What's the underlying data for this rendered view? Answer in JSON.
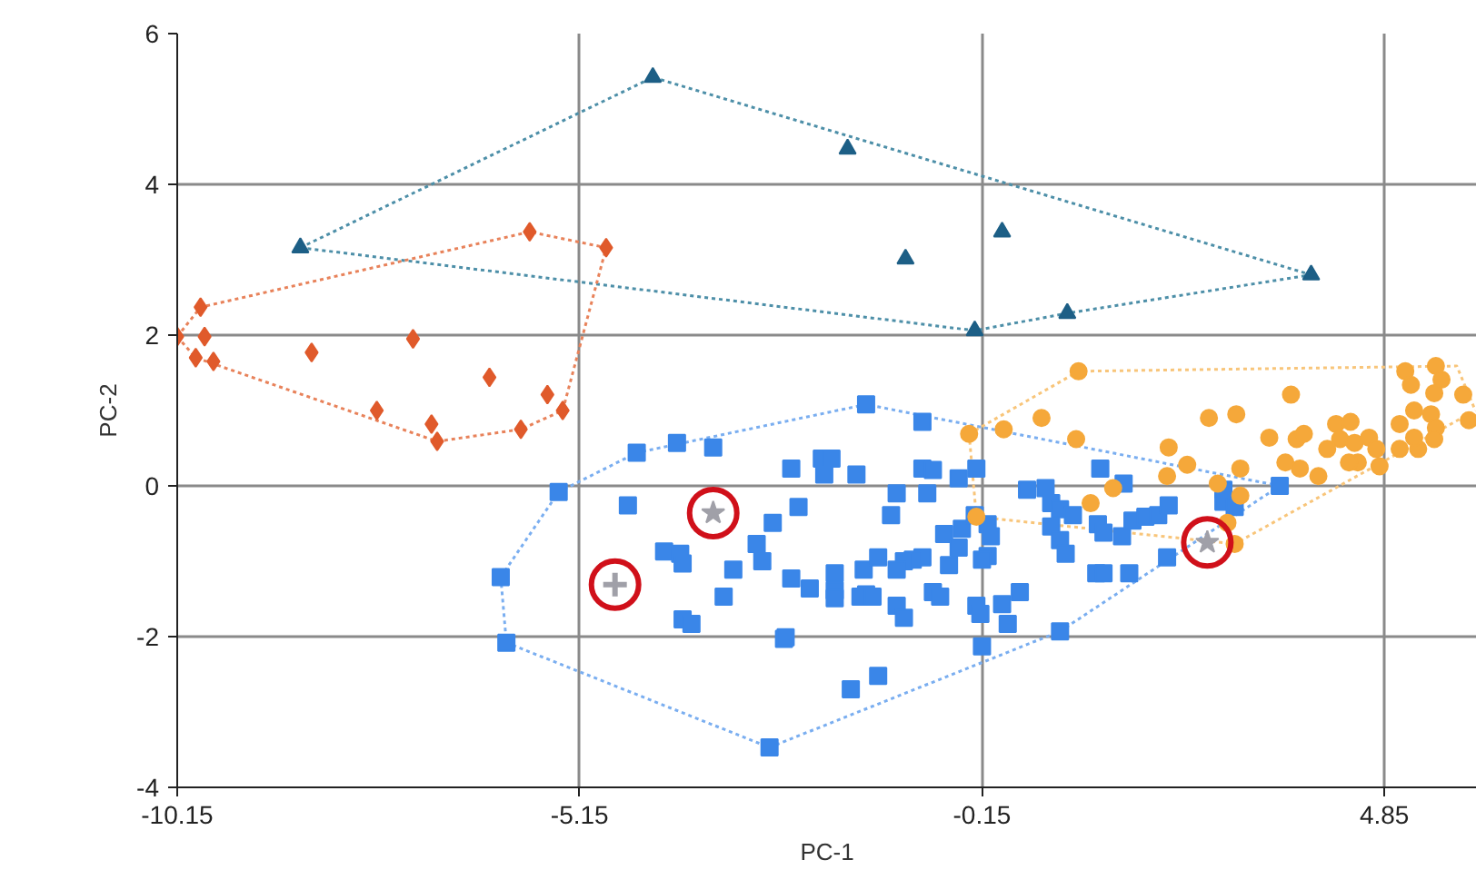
{
  "chart_data": {
    "type": "scatter",
    "xlabel": "PC-1",
    "ylabel": "PC-2",
    "xlim": [
      -10.15,
      6.0
    ],
    "ylim": [
      -4,
      6
    ],
    "xticks": [
      -10.15,
      -5.15,
      -0.15,
      4.85
    ],
    "yticks": [
      -4,
      -2,
      0,
      2,
      4,
      6
    ],
    "grid": true,
    "series": [
      {
        "type": "line",
        "line_style": "dotted",
        "color": "#4d8fa8",
        "x": [
          -8.62,
          -4.24,
          3.94
        ],
        "values": [
          3.16,
          5.42,
          2.8
        ]
      },
      {
        "type": "line",
        "line_style": "dotted",
        "color": "#4d8fa8",
        "x": [
          -8.62,
          -0.24,
          0.91,
          3.94
        ],
        "values": [
          3.16,
          2.06,
          2.29,
          2.8
        ]
      },
      {
        "type": "line",
        "line_style": "dotted",
        "color": "#e8825a",
        "x": [
          -10.15,
          -9.86,
          -5.77,
          -4.82
        ],
        "values": [
          1.98,
          2.37,
          3.37,
          3.16
        ]
      },
      {
        "type": "line",
        "line_style": "dotted",
        "color": "#e8825a",
        "x": [
          -10.15,
          -9.92,
          -6.92,
          -5.88,
          -5.36,
          -4.82
        ],
        "values": [
          1.98,
          1.7,
          0.59,
          0.75,
          1.0,
          3.16
        ]
      },
      {
        "type": "line",
        "line_style": "dotted",
        "color": "#7aaef0",
        "x": [
          -6.13,
          -5.41,
          -4.44,
          -1.59,
          3.55
        ],
        "values": [
          -1.21,
          -0.08,
          0.44,
          1.08,
          0.0
        ]
      },
      {
        "type": "line",
        "line_style": "dotted",
        "color": "#7aaef0",
        "x": [
          -6.13,
          -6.06,
          -2.79,
          0.82,
          3.55
        ],
        "values": [
          -1.21,
          -2.08,
          -3.47,
          -1.93,
          0.0
        ]
      },
      {
        "type": "line",
        "line_style": "dotted",
        "color": "#f8c57a",
        "x": [
          -0.31,
          1.05,
          5.75,
          5.98
        ],
        "values": [
          0.69,
          1.52,
          1.59,
          1.0
        ]
      },
      {
        "type": "line",
        "line_style": "dotted",
        "color": "#f8c57a",
        "x": [
          -0.31,
          -0.22,
          2.99,
          5.98
        ],
        "values": [
          0.69,
          -0.41,
          -0.77,
          1.0
        ]
      },
      {
        "marker": "triangle",
        "color": "#1d5f86",
        "x": [
          -4.24,
          -8.62,
          -1.82,
          -1.1,
          0.1,
          -0.24,
          0.91,
          3.94
        ],
        "values": [
          5.42,
          3.16,
          4.47,
          3.01,
          3.37,
          2.06,
          2.29,
          2.8
        ]
      },
      {
        "marker": "diamond",
        "color": "#e05a2b",
        "x": [
          -9.86,
          -10.15,
          -9.81,
          -9.92,
          -9.7,
          -8.48,
          -7.22,
          -7.67,
          -6.99,
          -6.92,
          -6.27,
          -5.88,
          -5.55,
          -5.36,
          -5.77,
          -4.82
        ],
        "values": [
          2.37,
          1.98,
          1.98,
          1.7,
          1.65,
          1.77,
          1.95,
          1.0,
          0.82,
          0.59,
          1.44,
          0.75,
          1.21,
          1.0,
          3.37,
          3.16
        ]
      },
      {
        "marker": "square",
        "color": "#3a86e8",
        "x": [
          -4.44,
          -3.94,
          -3.49,
          -5.41,
          -4.55,
          -6.13,
          -6.06,
          -2.79,
          -1.59,
          -2.52,
          -2.14,
          -2.02,
          -2.11,
          -1.71,
          -2.43,
          -2.75,
          -2.95,
          -2.88,
          -4.1,
          -3.9,
          -3.87,
          -3.24,
          -2.52,
          -2.29,
          -1.98,
          -1.98,
          -1.98,
          -1.62,
          -1.59,
          -3.36,
          -3.87,
          -3.76,
          -2.61,
          -1.78,
          -0.89,
          -0.89,
          -0.76,
          -0.44,
          -0.22,
          -1.21,
          -0.83,
          -1.28,
          -0.62,
          -0.4,
          -0.24,
          -0.08,
          -0.04,
          -0.08,
          -0.15,
          -0.44,
          -0.56,
          -0.89,
          -1.01,
          -1.12,
          -1.21,
          -1.44,
          -1.66,
          -1.51,
          -1.21,
          -1.12,
          -0.76,
          -0.67,
          -0.22,
          -0.17,
          0.1,
          0.17,
          0.32,
          -0.15,
          0.82,
          -1.44,
          -2.59,
          0.41,
          0.64,
          0.71,
          0.82,
          0.98,
          0.71,
          0.82,
          0.89,
          1.32,
          1.61,
          1.29,
          1.36,
          1.59,
          1.72,
          1.88,
          2.04,
          2.17,
          1.27,
          1.36,
          1.68,
          2.15,
          2.85,
          2.85,
          2.99,
          3.55
        ],
        "values": [
          0.44,
          0.57,
          0.51,
          -0.08,
          -0.26,
          -1.21,
          -2.08,
          -3.47,
          1.08,
          0.23,
          0.36,
          0.36,
          0.15,
          0.15,
          -0.28,
          -0.49,
          -0.77,
          -1.0,
          -0.87,
          -0.9,
          -1.03,
          -1.11,
          -1.23,
          -1.36,
          -1.16,
          -1.39,
          -1.49,
          -1.11,
          -1.44,
          -1.47,
          -1.77,
          -1.83,
          -2.03,
          -2.7,
          0.85,
          0.23,
          0.21,
          0.1,
          0.23,
          -0.1,
          -0.1,
          -0.39,
          -0.64,
          -0.57,
          -0.39,
          -0.51,
          -0.67,
          -0.93,
          -0.98,
          -0.82,
          -1.05,
          -0.95,
          -0.98,
          -1.0,
          -1.11,
          -0.95,
          -1.47,
          -1.47,
          -1.59,
          -1.75,
          -1.41,
          -1.47,
          -1.59,
          -1.7,
          -1.57,
          -1.83,
          -1.41,
          -2.13,
          -1.93,
          -2.52,
          -2.01,
          -0.05,
          -0.03,
          -0.23,
          -0.31,
          -0.39,
          -0.54,
          -0.72,
          -0.9,
          0.23,
          0.03,
          -0.51,
          -0.62,
          -0.67,
          -0.46,
          -0.41,
          -0.39,
          -0.26,
          -1.16,
          -1.16,
          -1.16,
          -0.95,
          -0.05,
          -0.21,
          -0.28,
          0.0
        ]
      },
      {
        "marker": "circle",
        "color": "#f5a83a",
        "x": [
          1.05,
          0.59,
          1.02,
          2.17,
          1.48,
          1.2,
          2.15,
          2.4,
          2.67,
          3.01,
          3.69,
          3.42,
          3.76,
          3.85,
          3.62,
          3.8,
          4.03,
          2.78,
          3.06,
          3.06,
          2.9,
          2.99,
          4.25,
          4.43,
          4.3,
          4.48,
          4.14,
          4.66,
          4.75,
          4.52,
          4.79,
          4.41,
          5.04,
          5.04,
          5.27,
          5.11,
          5.18,
          5.49,
          5.56,
          5.47,
          5.22,
          5.43,
          5.49,
          5.47,
          5.22,
          -0.31,
          0.12,
          -0.22,
          5.83,
          5.9
        ],
        "values": [
          1.52,
          0.9,
          0.62,
          0.51,
          -0.03,
          -0.23,
          0.13,
          0.28,
          0.9,
          0.95,
          1.21,
          0.64,
          0.62,
          0.69,
          0.31,
          0.23,
          0.13,
          0.03,
          0.23,
          -0.13,
          -0.49,
          -0.77,
          0.82,
          0.85,
          0.62,
          0.57,
          0.49,
          0.64,
          0.49,
          0.31,
          0.26,
          0.31,
          0.82,
          0.49,
          0.49,
          1.52,
          1.34,
          1.59,
          1.41,
          1.23,
          1.0,
          0.95,
          0.77,
          0.62,
          0.64,
          0.69,
          0.75,
          -0.41,
          1.21,
          0.87
        ]
      },
      {
        "marker": "star",
        "color": "#a0a0a8",
        "x": [
          -3.49,
          2.65
        ],
        "values": [
          -0.36,
          -0.75
        ]
      },
      {
        "marker": "cross",
        "color": "#a0a0a8",
        "x": [
          -4.71
        ],
        "values": [
          -1.31
        ]
      },
      {
        "marker": "circle",
        "line_style": "solid",
        "color": "#d0101a",
        "x": [
          -4.71,
          -3.49,
          2.65
        ],
        "values": [
          -1.31,
          -0.36,
          -0.75
        ]
      }
    ]
  }
}
